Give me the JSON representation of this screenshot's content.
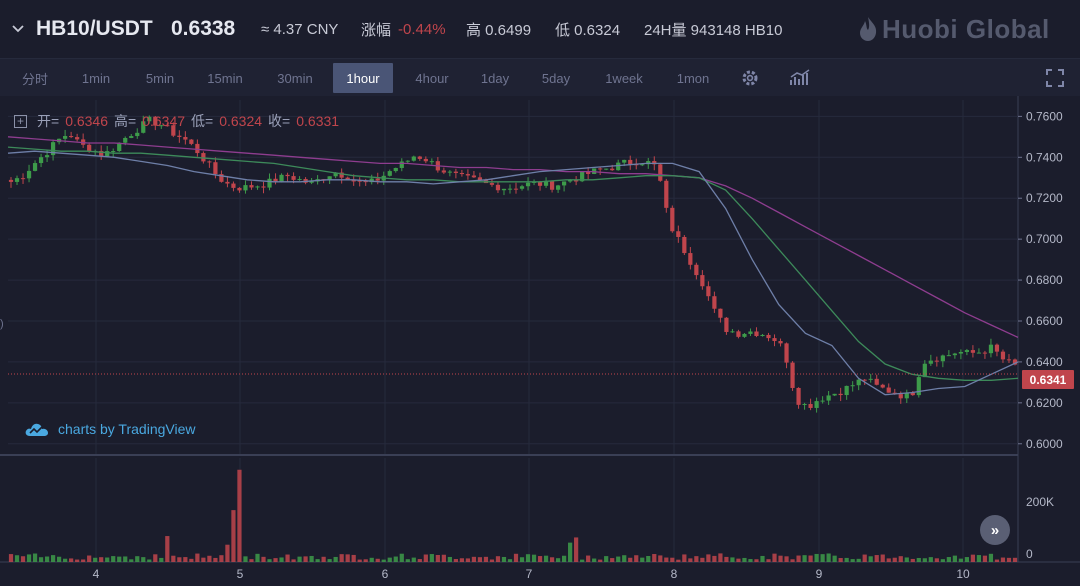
{
  "ticker": {
    "pair": "HB10/USDT",
    "last_price": "0.6338",
    "cny": "≈ 4.37 CNY",
    "change_label": "涨幅",
    "change_value": "-0.44%",
    "high": "高 0.6499",
    "low": "低 0.6324",
    "volume_24h": "24H量 943148 HB10",
    "brand": "Huobi Global"
  },
  "toolbar": {
    "timeframes": [
      "分时",
      "1min",
      "5min",
      "15min",
      "30min",
      "1hour",
      "4hour",
      "1day",
      "5day",
      "1week",
      "1mon"
    ],
    "active": "1hour",
    "settings_icon": "gear-icon",
    "indicator_icon": "indicator-icon",
    "fullscreen_icon": "fullscreen-icon"
  },
  "legend": {
    "open_label": "开=",
    "open": "0.6346",
    "high_label": "高=",
    "high": "0.6347",
    "low_label": "低=",
    "low": "0.6324",
    "close_label": "收=",
    "close": "0.6331"
  },
  "attribution": "charts by TradingView",
  "current_price_flag": "0.6341",
  "colors": {
    "up": "#3d9b4a",
    "down": "#c0454c",
    "ma_purple": "#8e3d8f",
    "ma_green": "#3d8a5a",
    "ma_blue": "#6e7fa8",
    "grid": "#262a3c",
    "bg": "#1b1d2c"
  },
  "chart_data": {
    "type": "candlestick",
    "interval": "1hour",
    "x_tick_labels": [
      "4",
      "5",
      "6",
      "7",
      "8",
      "9",
      "10"
    ],
    "y_tick_labels": [
      "0.7600",
      "0.7400",
      "0.7200",
      "0.7000",
      "0.6800",
      "0.6600",
      "0.6400",
      "0.6200",
      "0.6000"
    ],
    "ylim": [
      0.595,
      0.768
    ],
    "volume_tick_labels": [
      "200K",
      "0"
    ],
    "volume_max": 340000,
    "close_series": [
      0.728,
      0.731,
      0.737,
      0.742,
      0.748,
      0.752,
      0.746,
      0.744,
      0.741,
      0.745,
      0.75,
      0.754,
      0.758,
      0.756,
      0.752,
      0.749,
      0.744,
      0.737,
      0.73,
      0.726,
      0.725,
      0.726,
      0.727,
      0.729,
      0.731,
      0.729,
      0.727,
      0.73,
      0.733,
      0.731,
      0.728,
      0.727,
      0.73,
      0.734,
      0.737,
      0.741,
      0.739,
      0.735,
      0.732,
      0.73,
      0.729,
      0.727,
      0.726,
      0.725,
      0.726,
      0.727,
      0.727,
      0.726,
      0.728,
      0.73,
      0.732,
      0.734,
      0.735,
      0.737,
      0.738,
      0.738,
      0.735,
      0.708,
      0.698,
      0.688,
      0.678,
      0.664,
      0.656,
      0.654,
      0.655,
      0.654,
      0.652,
      0.646,
      0.622,
      0.618,
      0.622,
      0.624,
      0.626,
      0.629,
      0.632,
      0.628,
      0.626,
      0.624,
      0.623,
      0.64,
      0.642,
      0.643,
      0.645,
      0.644,
      0.645,
      0.647,
      0.641,
      0.638
    ],
    "ma_series": [
      {
        "color": "purple",
        "values": [
          0.75,
          0.749,
          0.748,
          0.747,
          0.747,
          0.746,
          0.745,
          0.744,
          0.743,
          0.742,
          0.741,
          0.74,
          0.739,
          0.738,
          0.737,
          0.737,
          0.736,
          0.735,
          0.735,
          0.734,
          0.734,
          0.733,
          0.733,
          0.732,
          0.732,
          0.731,
          0.73,
          0.726,
          0.72,
          0.713,
          0.706,
          0.699,
          0.692,
          0.685,
          0.678,
          0.671,
          0.664,
          0.658,
          0.652
        ]
      },
      {
        "color": "green",
        "values": [
          0.745,
          0.744,
          0.743,
          0.743,
          0.742,
          0.742,
          0.741,
          0.74,
          0.739,
          0.738,
          0.737,
          0.735,
          0.733,
          0.731,
          0.73,
          0.729,
          0.729,
          0.728,
          0.728,
          0.728,
          0.728,
          0.729,
          0.729,
          0.73,
          0.731,
          0.731,
          0.73,
          0.724,
          0.71,
          0.695,
          0.68,
          0.665,
          0.65,
          0.639,
          0.634,
          0.632,
          0.631,
          0.631,
          0.632
        ]
      },
      {
        "color": "blue",
        "values": [
          0.742,
          0.743,
          0.742,
          0.741,
          0.74,
          0.738,
          0.736,
          0.733,
          0.731,
          0.729,
          0.728,
          0.728,
          0.729,
          0.729,
          0.728,
          0.728,
          0.727,
          0.728,
          0.729,
          0.731,
          0.733,
          0.734,
          0.735,
          0.736,
          0.737,
          0.737,
          0.733,
          0.715,
          0.69,
          0.668,
          0.654,
          0.648,
          0.632,
          0.624,
          0.625,
          0.627,
          0.628,
          0.634,
          0.64
        ]
      }
    ]
  }
}
